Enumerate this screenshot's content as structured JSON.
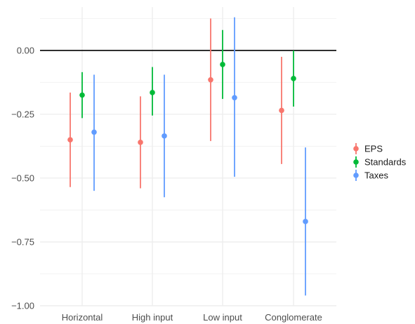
{
  "chart_data": {
    "type": "scatter",
    "subtype": "point-range",
    "title": "",
    "xlabel": "",
    "ylabel": "",
    "categories": [
      "Horizontal",
      "High input",
      "Low input",
      "Conglomerate"
    ],
    "ylim": [
      -1.0,
      0.17
    ],
    "y_ticks": [
      0.0,
      -0.25,
      -0.5,
      -0.75,
      -1.0
    ],
    "y_tick_labels": [
      "0.00",
      "−0.25",
      "−0.50",
      "−0.75",
      "−1.00"
    ],
    "reference_line": 0.0,
    "grid": true,
    "legend_position": "right",
    "series": [
      {
        "name": "EPS",
        "color": "#F8766D",
        "estimates": [
          -0.35,
          -0.36,
          -0.115,
          -0.235
        ],
        "lower": [
          -0.535,
          -0.54,
          -0.355,
          -0.445
        ],
        "upper": [
          -0.165,
          -0.18,
          0.125,
          -0.025
        ]
      },
      {
        "name": "Standards",
        "color": "#00BA38",
        "estimates": [
          -0.175,
          -0.165,
          -0.055,
          -0.11
        ],
        "lower": [
          -0.265,
          -0.255,
          -0.19,
          -0.22
        ],
        "upper": [
          -0.085,
          -0.065,
          0.08,
          0.0
        ]
      },
      {
        "name": "Taxes",
        "color": "#619CFF",
        "estimates": [
          -0.32,
          -0.335,
          -0.185,
          -0.67
        ],
        "lower": [
          -0.55,
          -0.575,
          -0.495,
          -0.96
        ],
        "upper": [
          -0.095,
          -0.095,
          0.13,
          -0.38
        ]
      }
    ]
  }
}
